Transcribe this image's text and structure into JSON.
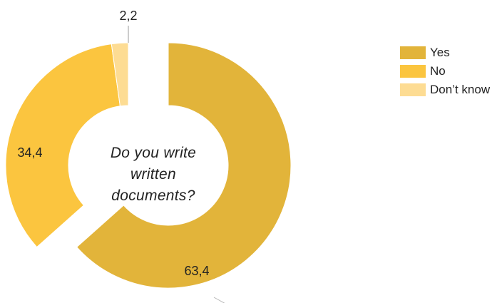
{
  "chart_data": {
    "type": "pie",
    "subtype": "exploded-donut",
    "center_text_lines": [
      "Do you write",
      "written",
      "documents?"
    ],
    "categories": [
      "Yes",
      "No",
      "Don’t know"
    ],
    "values": [
      63.4,
      34.4,
      2.2
    ],
    "value_labels": [
      "63,4",
      "34,4",
      "2,2"
    ],
    "colors": [
      "#E2B43A",
      "#FBC53F",
      "#FDDC93"
    ],
    "legend_position": "top-right"
  }
}
